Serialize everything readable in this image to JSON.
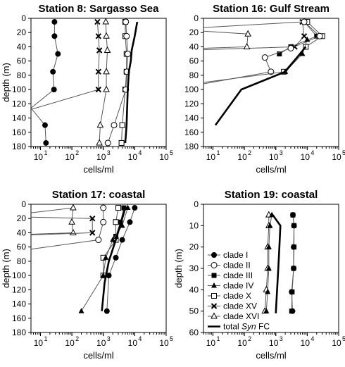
{
  "figure": {
    "legend": [
      {
        "key": "cladeI",
        "label": "clade I",
        "marker": "circle-filled"
      },
      {
        "key": "cladeII",
        "label": "clade II",
        "marker": "circle-open"
      },
      {
        "key": "cladeIII",
        "label": "clade III",
        "marker": "square-filled"
      },
      {
        "key": "cladeIV",
        "label": "clade IV",
        "marker": "triangle-filled"
      },
      {
        "key": "cladeX",
        "label": "clade X",
        "marker": "square-open"
      },
      {
        "key": "cladeXV",
        "label": "clade XV",
        "marker": "cross"
      },
      {
        "key": "cladeXVI",
        "label": "clade XVI",
        "marker": "triangle-open"
      },
      {
        "key": "total",
        "label": "total Syn FC",
        "label_plain": "total ",
        "label_italic": "Syn",
        "label_tail": " FC",
        "marker": "thick-line"
      }
    ]
  },
  "chart_data": [
    {
      "type": "line",
      "title": "Station 8: Sargasso Sea",
      "xlabel": "cells/ml",
      "ylabel": "depth (m)",
      "xscale": "log",
      "xlim": [
        5,
        100000
      ],
      "ylim": [
        180,
        0
      ],
      "xticks": [
        10,
        100,
        1000,
        10000,
        100000
      ],
      "xtick_labels": [
        {
          "base": "10",
          "exp": "1"
        },
        {
          "base": "10",
          "exp": "2"
        },
        {
          "base": "10",
          "exp": "3"
        },
        {
          "base": "10",
          "exp": "4"
        },
        {
          "base": "10",
          "exp": "5"
        }
      ],
      "yticks": [
        0,
        20,
        40,
        60,
        80,
        100,
        120,
        140,
        160,
        180
      ],
      "ytick_labels": [
        "0",
        "20",
        "40",
        "60",
        "80",
        "100",
        "120",
        "140",
        "160",
        "180"
      ],
      "series": [
        {
          "key": "cladeI",
          "points": [
            [
              28,
              5
            ],
            [
              28,
              25
            ],
            [
              36,
              50
            ],
            [
              25,
              75
            ],
            [
              27,
              100
            ],
            [
              5,
              126
            ],
            [
              14,
              150
            ],
            [
              15,
              175
            ]
          ]
        },
        {
          "key": "cladeXV",
          "points": [
            [
              650,
              5
            ],
            [
              700,
              25
            ],
            [
              750,
              45
            ],
            [
              700,
              75
            ],
            [
              700,
              100
            ],
            [
              5,
              128
            ]
          ]
        },
        {
          "key": "cladeXVI",
          "points": [
            [
              1200,
              5
            ],
            [
              1250,
              25
            ],
            [
              1350,
              45
            ],
            [
              1250,
              75
            ],
            [
              1250,
              100
            ],
            [
              800,
              150
            ],
            [
              750,
              175
            ]
          ]
        },
        {
          "key": "cladeX",
          "points": [
            [
              5000,
              5
            ],
            [
              5000,
              25
            ],
            [
              5500,
              50
            ],
            [
              5500,
              75
            ],
            [
              5000,
              100
            ],
            [
              4000,
              150
            ],
            [
              3800,
              175
            ]
          ]
        },
        {
          "key": "cladeII",
          "points": [
            [
              5200,
              5
            ],
            [
              5500,
              25
            ],
            [
              6000,
              50
            ],
            [
              5600,
              75
            ],
            [
              5200,
              100
            ],
            [
              2200,
              150
            ],
            [
              1400,
              175
            ]
          ]
        },
        {
          "key": "total",
          "points": [
            [
              12000,
              5
            ],
            [
              10000,
              25
            ],
            [
              8000,
              45
            ],
            [
              7500,
              60
            ],
            [
              6500,
              75
            ],
            [
              6000,
              100
            ],
            [
              5500,
              150
            ],
            [
              5000,
              175
            ]
          ]
        }
      ]
    },
    {
      "type": "line",
      "title": "Station 16: Gulf Stream",
      "xlabel": "cells/ml",
      "ylabel": "",
      "xscale": "log",
      "xlim": [
        5,
        100000
      ],
      "ylim": [
        180,
        0
      ],
      "xticks": [
        10,
        100,
        1000,
        10000,
        100000
      ],
      "xtick_labels": [
        {
          "base": "10",
          "exp": "1"
        },
        {
          "base": "10",
          "exp": "2"
        },
        {
          "base": "10",
          "exp": "3"
        },
        {
          "base": "10",
          "exp": "4"
        },
        {
          "base": "10",
          "exp": "5"
        }
      ],
      "yticks": [
        0,
        20,
        40,
        60,
        80,
        100,
        120,
        140,
        160,
        180
      ],
      "ytick_labels": [
        "0",
        "20",
        "40",
        "60",
        "80",
        "100",
        "120",
        "140",
        "160",
        "180"
      ],
      "series": [
        {
          "key": "cladeXV",
          "points": [
            [
              5,
              13
            ],
            [
              7000,
              5
            ],
            [
              8000,
              25
            ],
            [
              4000,
              40
            ],
            [
              5,
              44
            ]
          ]
        },
        {
          "key": "cladeXVI",
          "points": [
            [
              5,
              18
            ],
            [
              130,
              22
            ],
            [
              120,
              40
            ],
            [
              5,
              42
            ]
          ]
        },
        {
          "key": "cladeIII",
          "points": [
            [
              8000,
              5
            ],
            [
              20000,
              25
            ],
            [
              3000,
              40
            ],
            [
              1300,
              50
            ]
          ]
        },
        {
          "key": "cladeX",
          "points": [
            [
              10000,
              5
            ],
            [
              30000,
              25
            ],
            [
              9000,
              40
            ],
            [
              1800,
              75
            ]
          ]
        },
        {
          "key": "cladeII",
          "points": [
            [
              8000,
              5
            ],
            [
              25000,
              25
            ],
            [
              3000,
              42
            ],
            [
              450,
              55
            ],
            [
              700,
              75
            ],
            [
              5,
              92
            ]
          ]
        },
        {
          "key": "cladeIV",
          "points": [
            [
              5,
              90
            ],
            [
              2000,
              75
            ],
            [
              7000,
              50
            ],
            [
              10000,
              30
            ]
          ]
        },
        {
          "key": "total",
          "points": [
            [
              9000,
              40
            ],
            [
              2000,
              75
            ],
            [
              80,
              100
            ],
            [
              12,
              150
            ]
          ]
        }
      ]
    },
    {
      "type": "line",
      "title": "Station 17: coastal",
      "xlabel": "cells/ml",
      "ylabel": "depth (m)",
      "xscale": "log",
      "xlim": [
        5,
        100000
      ],
      "ylim": [
        180,
        0
      ],
      "xticks": [
        10,
        100,
        1000,
        10000,
        100000
      ],
      "xtick_labels": [
        {
          "base": "10",
          "exp": "1"
        },
        {
          "base": "10",
          "exp": "2"
        },
        {
          "base": "10",
          "exp": "3"
        },
        {
          "base": "10",
          "exp": "4"
        },
        {
          "base": "10",
          "exp": "5"
        }
      ],
      "yticks": [
        0,
        20,
        40,
        60,
        80,
        100,
        120,
        140,
        160,
        180
      ],
      "ytick_labels": [
        "0",
        "20",
        "40",
        "60",
        "80",
        "100",
        "120",
        "140",
        "160",
        "180"
      ],
      "series": [
        {
          "key": "cladeXVI",
          "points": [
            [
              5,
              12
            ],
            [
              110,
              5
            ],
            [
              100,
              25
            ],
            [
              110,
              40
            ],
            [
              5,
              42
            ]
          ]
        },
        {
          "key": "cladeXV",
          "points": [
            [
              5,
              18
            ],
            [
              450,
              20
            ],
            [
              450,
              40
            ],
            [
              5,
              43
            ]
          ]
        },
        {
          "key": "cladeII",
          "points": [
            [
              5,
              63
            ],
            [
              700,
              50
            ],
            [
              1000,
              25
            ],
            [
              1000,
              5
            ]
          ]
        },
        {
          "key": "cladeX",
          "points": [
            [
              3000,
              5
            ],
            [
              2500,
              25
            ],
            [
              2500,
              50
            ],
            [
              1000,
              75
            ],
            [
              1000,
              100
            ]
          ]
        },
        {
          "key": "cladeIII",
          "points": [
            [
              4500,
              5
            ],
            [
              3500,
              25
            ],
            [
              2500,
              45
            ]
          ]
        },
        {
          "key": "cladeIV",
          "points": [
            [
              6000,
              5
            ],
            [
              4000,
              30
            ],
            [
              2000,
              50
            ],
            [
              1200,
              75
            ],
            [
              1000,
              100
            ],
            [
              200,
              150
            ]
          ]
        },
        {
          "key": "cladeI",
          "points": [
            [
              10000,
              5
            ],
            [
              7000,
              25
            ],
            [
              4000,
              50
            ],
            [
              2500,
              75
            ],
            [
              1500,
              100
            ],
            [
              1300,
              150
            ]
          ]
        },
        {
          "key": "total",
          "points": [
            [
              5000,
              5
            ],
            [
              4000,
              20
            ],
            [
              2500,
              50
            ],
            [
              1500,
              80
            ],
            [
              1100,
              110
            ],
            [
              900,
              150
            ]
          ]
        }
      ]
    },
    {
      "type": "line",
      "title": "Station 19: coastal",
      "xlabel": "cells/ml",
      "ylabel": "depth (m)",
      "xscale": "log",
      "xlim": [
        5,
        100000
      ],
      "ylim": [
        60,
        0
      ],
      "xticks": [
        10,
        100,
        1000,
        10000,
        100000
      ],
      "xtick_labels": [
        {
          "base": "10",
          "exp": "1"
        },
        {
          "base": "10",
          "exp": "2"
        },
        {
          "base": "10",
          "exp": "3"
        },
        {
          "base": "10",
          "exp": "4"
        },
        {
          "base": "10",
          "exp": "5"
        }
      ],
      "yticks": [
        0,
        10,
        20,
        30,
        40,
        50,
        60
      ],
      "ytick_labels": [
        "0",
        "10",
        "20",
        "30",
        "40",
        "50",
        "60"
      ],
      "legend_position": "lower-left",
      "series": [
        {
          "key": "cladeI",
          "points": [
            [
              3500,
              5
            ],
            [
              3800,
              10
            ],
            [
              3700,
              20
            ],
            [
              3700,
              30
            ],
            [
              3200,
              41
            ],
            [
              3400,
              50
            ]
          ]
        },
        {
          "key": "cladeIII",
          "points": [
            [
              3500,
              5
            ],
            [
              3800,
              10
            ],
            [
              3800,
              20
            ],
            [
              3700,
              30
            ],
            [
              3300,
              41
            ],
            [
              3200,
              50
            ]
          ]
        },
        {
          "key": "cladeXVI",
          "points": [
            [
              600,
              5
            ],
            [
              600,
              10
            ],
            [
              550,
              20
            ],
            [
              550,
              30
            ],
            [
              500,
              40
            ],
            [
              450,
              50
            ]
          ]
        },
        {
          "key": "cladeIV",
          "points": [
            [
              750,
              5
            ],
            [
              650,
              10
            ],
            [
              600,
              20
            ],
            [
              600,
              30
            ],
            [
              550,
              41
            ],
            [
              500,
              50
            ]
          ]
        },
        {
          "key": "total",
          "points": [
            [
              800,
              5
            ],
            [
              1400,
              10
            ],
            [
              1300,
              20
            ],
            [
              1200,
              30
            ],
            [
              1100,
              40
            ],
            [
              1000,
              51
            ]
          ]
        }
      ]
    }
  ]
}
